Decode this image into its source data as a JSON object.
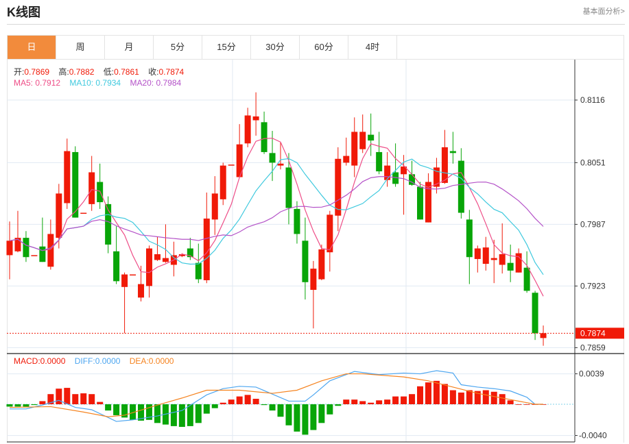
{
  "header": {
    "title": "K线图",
    "link": "基本面分析>"
  },
  "tabs": [
    {
      "label": "日",
      "active": true
    },
    {
      "label": "周"
    },
    {
      "label": "月"
    },
    {
      "label": "5分"
    },
    {
      "label": "15分"
    },
    {
      "label": "30分"
    },
    {
      "label": "60分"
    },
    {
      "label": "4时"
    }
  ],
  "ohlc_info": {
    "open_label": "开:",
    "open": "0.7869",
    "high_label": "高:",
    "high": "0.7882",
    "low_label": "低:",
    "low": "0.7861",
    "close_label": "收:",
    "close": "0.7874"
  },
  "ma_info": {
    "ma5": "MA5: 0.7912",
    "ma10": "MA10: 0.7934",
    "ma20": "MA20: 0.7984"
  },
  "macd_info": {
    "macd": "MACD:0.0000",
    "diff": "DIFF:0.0000",
    "dea": "DEA:0.0000"
  },
  "colors": {
    "up": "#f01a08",
    "down": "#08a508",
    "ma5": "#ee4d87",
    "ma10": "#3fc9de",
    "ma20": "#b452c8",
    "diff": "#4da6f0",
    "dea": "#f5831f",
    "accent": "#f28b3c"
  },
  "chart_data": {
    "type": "candlestick",
    "price_ticks": [
      "0.8116",
      "0.8051",
      "0.7987",
      "0.7923",
      "0.7859"
    ],
    "current_price": "0.7874",
    "price_range": [
      0.785,
      0.8135
    ],
    "macd_ticks": [
      "0.0039",
      "-0.0040"
    ],
    "candles": [
      [
        0.7955,
        0.797,
        0.799,
        0.793
      ],
      [
        0.7959,
        0.7973,
        0.8001,
        0.7958
      ],
      [
        0.7973,
        0.7953,
        0.798,
        0.7948
      ],
      [
        0.7955,
        0.7955,
        0.7955,
        0.7955
      ],
      [
        0.7964,
        0.7948,
        0.7994,
        0.7948
      ],
      [
        0.7943,
        0.7977,
        0.7992,
        0.794
      ],
      [
        0.7973,
        0.8019,
        0.8029,
        0.7962
      ],
      [
        0.8009,
        0.8063,
        0.8076,
        0.8003
      ],
      [
        0.8062,
        0.7994,
        0.8068,
        0.7994
      ],
      [
        0.7999,
        0.7999,
        0.7999,
        0.7999
      ],
      [
        0.8008,
        0.8041,
        0.8058,
        0.8001
      ],
      [
        0.8031,
        0.801,
        0.805,
        0.8003
      ],
      [
        0.8008,
        0.7966,
        0.8016,
        0.7957
      ],
      [
        0.7959,
        0.7928,
        0.7985,
        0.7925
      ],
      [
        0.7922,
        0.7935,
        0.7937,
        0.7874
      ],
      [
        0.7935,
        0.7935,
        0.7935,
        0.7935
      ],
      [
        0.7911,
        0.7925,
        0.7944,
        0.7907
      ],
      [
        0.7923,
        0.7962,
        0.7965,
        0.7911
      ],
      [
        0.795,
        0.7956,
        0.7974,
        0.7949
      ],
      [
        0.7948,
        0.7952,
        0.7987,
        0.7947
      ],
      [
        0.7945,
        0.7955,
        0.7969,
        0.7933
      ],
      [
        0.7954,
        0.7956,
        0.7957,
        0.7953
      ],
      [
        0.7962,
        0.7953,
        0.7973,
        0.795
      ],
      [
        0.7947,
        0.793,
        0.7967,
        0.7926
      ],
      [
        0.7929,
        0.7993,
        0.802,
        0.7926
      ],
      [
        0.7992,
        0.8019,
        0.8037,
        0.7976
      ],
      [
        0.8013,
        0.8048,
        0.8051,
        0.8007
      ],
      [
        0.8049,
        0.8049,
        0.8049,
        0.8049
      ],
      [
        0.8036,
        0.807,
        0.8091,
        0.8036
      ],
      [
        0.8071,
        0.81,
        0.8108,
        0.8067
      ],
      [
        0.8095,
        0.8099,
        0.8124,
        0.8079
      ],
      [
        0.8093,
        0.8062,
        0.8104,
        0.806
      ],
      [
        0.8061,
        0.8051,
        0.8084,
        0.8032
      ],
      [
        0.8048,
        0.805,
        0.8072,
        0.8044
      ],
      [
        0.8046,
        0.8004,
        0.8061,
        0.7987
      ],
      [
        0.8003,
        0.7977,
        0.8011,
        0.7967
      ],
      [
        0.797,
        0.7927,
        0.7994,
        0.7909
      ],
      [
        0.7919,
        0.7941,
        0.7949,
        0.7879
      ],
      [
        0.793,
        0.7961,
        0.7966,
        0.7929
      ],
      [
        0.7958,
        0.7997,
        0.8001,
        0.7938
      ],
      [
        0.7996,
        0.8055,
        0.8067,
        0.798
      ],
      [
        0.8051,
        0.8058,
        0.8077,
        0.8048
      ],
      [
        0.8048,
        0.8083,
        0.8098,
        0.8036
      ],
      [
        0.8065,
        0.8083,
        0.8101,
        0.8061
      ],
      [
        0.808,
        0.8074,
        0.8102,
        0.8058
      ],
      [
        0.8062,
        0.8042,
        0.8083,
        0.8039
      ],
      [
        0.8033,
        0.8048,
        0.8062,
        0.8026
      ],
      [
        0.8041,
        0.8029,
        0.8071,
        0.8026
      ],
      [
        0.8039,
        0.8047,
        0.8059,
        0.7997
      ],
      [
        0.8039,
        0.8028,
        0.8053,
        0.8027
      ],
      [
        0.8026,
        0.7992,
        0.8031,
        0.7992
      ],
      [
        0.7989,
        0.8031,
        0.804,
        0.7989
      ],
      [
        0.8026,
        0.8046,
        0.8056,
        0.8019
      ],
      [
        0.803,
        0.8067,
        0.8085,
        0.8029
      ],
      [
        0.8063,
        0.8061,
        0.8083,
        0.805
      ],
      [
        0.8053,
        0.7999,
        0.8066,
        0.7993
      ],
      [
        0.7992,
        0.7953,
        0.8002,
        0.7925
      ],
      [
        0.7951,
        0.7962,
        0.7965,
        0.7937
      ],
      [
        0.7946,
        0.7963,
        0.7974,
        0.7939
      ],
      [
        0.795,
        0.7952,
        0.7971,
        0.7926
      ],
      [
        0.7945,
        0.7956,
        0.7988,
        0.7936
      ],
      [
        0.7947,
        0.7939,
        0.7966,
        0.7927
      ],
      [
        0.7937,
        0.7957,
        0.7962,
        0.7937
      ],
      [
        0.7942,
        0.7918,
        0.7959,
        0.7916
      ],
      [
        0.7916,
        0.7874,
        0.7918,
        0.7867
      ],
      [
        0.7869,
        0.7874,
        0.7882,
        0.7861
      ]
    ],
    "macd_hist": [
      -0.0003,
      -0.0003,
      -0.0003,
      -0.0001,
      0.0004,
      0.0013,
      0.002,
      0.0021,
      0.0013,
      0.0014,
      0.0013,
      0.0003,
      -0.0008,
      -0.0014,
      -0.0017,
      -0.002,
      -0.0021,
      -0.002,
      -0.0024,
      -0.0026,
      -0.0028,
      -0.0029,
      -0.0028,
      -0.0024,
      -0.0012,
      -0.0005,
      0.0002,
      0.0006,
      0.001,
      0.0012,
      0.0007,
      -0.0001,
      -0.0008,
      -0.0016,
      -0.0027,
      -0.0035,
      -0.0039,
      -0.0033,
      -0.0024,
      -0.0013,
      -0.0002,
      0.0006,
      0.0006,
      0.0004,
      0.0002,
      0.0005,
      0.0006,
      0.001,
      0.001,
      0.0013,
      0.0023,
      0.0028,
      0.003,
      0.0026,
      0.0018,
      0.0015,
      0.0018,
      0.0017,
      0.0018,
      0.0016,
      0.0013,
      0.0005,
      0.0,
      0.0,
      0.0,
      0.0
    ],
    "diff": [
      [
        0,
        -0.0006
      ],
      [
        2,
        -0.0006
      ],
      [
        4,
        -0.0001
      ],
      [
        6,
        0.0005
      ],
      [
        8,
        -0.0004
      ],
      [
        10,
        -0.0007
      ],
      [
        13,
        -0.0022
      ],
      [
        15,
        -0.002
      ],
      [
        18,
        -0.0015
      ],
      [
        21,
        -0.0008
      ],
      [
        24,
        0.0012
      ],
      [
        26,
        0.002
      ],
      [
        28,
        0.0023
      ],
      [
        30,
        0.0022
      ],
      [
        32,
        0.0013
      ],
      [
        34,
        0.0004
      ],
      [
        36,
        0.0004
      ],
      [
        37,
        0.0012
      ],
      [
        39,
        0.003
      ],
      [
        42,
        0.0042
      ],
      [
        45,
        0.0038
      ],
      [
        48,
        0.004
      ],
      [
        50,
        0.0039
      ],
      [
        52,
        0.0043
      ],
      [
        54,
        0.004
      ],
      [
        55,
        0.0025
      ],
      [
        57,
        0.0022
      ],
      [
        59,
        0.002
      ],
      [
        61,
        0.0017
      ],
      [
        63,
        0.0009
      ],
      [
        64,
        0.0
      ],
      [
        65,
        0.0
      ]
    ],
    "dea": [
      [
        0,
        -0.0004
      ],
      [
        5,
        -0.0003
      ],
      [
        9,
        -0.001
      ],
      [
        12,
        -0.0016
      ],
      [
        14,
        -0.0014
      ],
      [
        18,
        -0.0001
      ],
      [
        21,
        0.0008
      ],
      [
        24,
        0.0018
      ],
      [
        28,
        0.0018
      ],
      [
        32,
        0.0014
      ],
      [
        35,
        0.0018
      ],
      [
        38,
        0.003
      ],
      [
        41,
        0.0039
      ],
      [
        43,
        0.0039
      ],
      [
        48,
        0.0035
      ],
      [
        51,
        0.003
      ],
      [
        54,
        0.0022
      ],
      [
        57,
        0.0014
      ],
      [
        61,
        0.0006
      ],
      [
        64,
        0.0
      ],
      [
        65,
        0.0
      ]
    ]
  }
}
